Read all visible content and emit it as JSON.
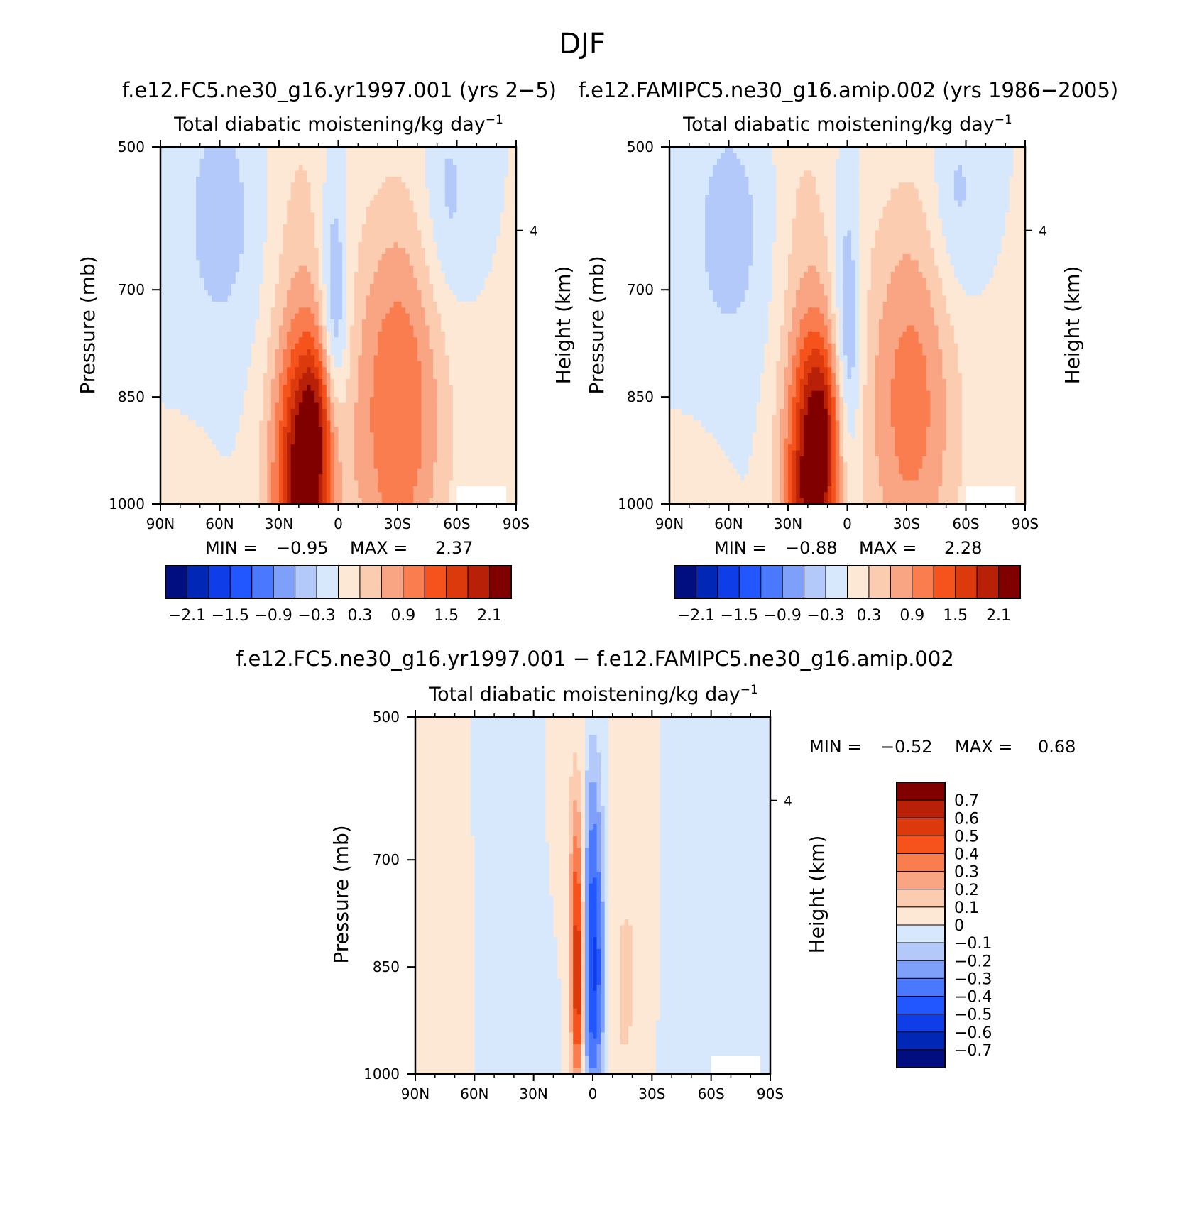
{
  "figure": {
    "title": "DJF",
    "diff_title": "f.e12.FC5.ne30_g16.yr1997.001 − f.e12.FAMIPC5.ne30_g16.amip.002"
  },
  "colors": {
    "abs_levels": [
      "#000e80",
      "#0027b5",
      "#0f3ee8",
      "#2257ff",
      "#4a79ff",
      "#7fa0fa",
      "#b3c9fa",
      "#d8e8fc",
      "#fde8d5",
      "#fcccb0",
      "#f9a482",
      "#fa7d50",
      "#f5521c",
      "#dc3a0c",
      "#b82008",
      "#800000"
    ],
    "diff_levels": [
      "#000e80",
      "#0027b5",
      "#0f3ee8",
      "#2257ff",
      "#4a79ff",
      "#7fa0fa",
      "#b3c9fa",
      "#d8e8fc",
      "#fde8d5",
      "#fcccb0",
      "#f9a482",
      "#fa7d50",
      "#f5521c",
      "#dc3a0c",
      "#b82008",
      "#800000"
    ]
  },
  "chart_data": [
    {
      "type": "heatmap",
      "panel_title": "f.e12.FC5.ne30_g16.yr1997.001 (yrs 2−5)",
      "subtitle": "Total diabatic moistening/kg day",
      "subtitle_sup": "−1",
      "xlabel": "",
      "ylabel": "Pressure (mb)",
      "ylabel_right": "Height (km)",
      "xticks": [
        "90N",
        "60N",
        "30N",
        "0",
        "30S",
        "60S",
        "90S"
      ],
      "yticks": [
        "500",
        "700",
        "850",
        "1000"
      ],
      "right_ticks": [
        "4"
      ],
      "x_range": [
        90,
        -90
      ],
      "y_range": [
        1000,
        500
      ],
      "min_label": "MIN =",
      "min_value": "−0.95",
      "max_label": "MAX =",
      "max_value": "2.37",
      "colorbar_labels": [
        "−2.1",
        "−1.5",
        "−0.9",
        "−0.3",
        "0.3",
        "0.9",
        "1.5",
        "2.1"
      ],
      "features": [
        {
          "lat": 18,
          "p": 990,
          "value": 2.37,
          "sx": 11,
          "sp": 170
        },
        {
          "lat": 10,
          "p": 880,
          "value": 0.8,
          "sx": 7,
          "sp": 80
        },
        {
          "lat": 20,
          "p": 560,
          "value": 0.25,
          "sx": 10,
          "sp": 150
        },
        {
          "lat": 2,
          "p": 760,
          "value": -0.95,
          "sx": 5,
          "sp": 140
        },
        {
          "lat": -30,
          "p": 870,
          "value": 1.2,
          "sx": 17,
          "sp": 200
        },
        {
          "lat": 60,
          "p": 600,
          "value": -0.45,
          "sx": 14,
          "sp": 130
        },
        {
          "lat": -55,
          "p": 580,
          "value": -0.45,
          "sx": 9,
          "sp": 110
        },
        {
          "lat": 80,
          "p": 990,
          "value": 0.3,
          "sx": 10,
          "sp": 50
        }
      ]
    },
    {
      "type": "heatmap",
      "panel_title": "f.e12.FAMIPC5.ne30_g16.amip.002 (yrs 1986−2005)",
      "subtitle": "Total diabatic moistening/kg day",
      "subtitle_sup": "−1",
      "xlabel": "",
      "ylabel": "Pressure (mb)",
      "ylabel_right": "Height (km)",
      "xticks": [
        "90N",
        "60N",
        "30N",
        "0",
        "30S",
        "60S",
        "90S"
      ],
      "yticks": [
        "500",
        "700",
        "850",
        "1000"
      ],
      "right_ticks": [
        "4"
      ],
      "x_range": [
        90,
        -90
      ],
      "y_range": [
        1000,
        500
      ],
      "min_label": "MIN =",
      "min_value": "−0.88",
      "max_label": "MAX =",
      "max_value": "2.28",
      "colorbar_labels": [
        "−2.1",
        "−1.5",
        "−0.9",
        "−0.3",
        "0.3",
        "0.9",
        "1.5",
        "2.1"
      ],
      "features": [
        {
          "lat": 18,
          "p": 985,
          "value": 2.28,
          "sx": 10,
          "sp": 170
        },
        {
          "lat": 12,
          "p": 880,
          "value": 0.7,
          "sx": 7,
          "sp": 80
        },
        {
          "lat": 22,
          "p": 560,
          "value": 0.25,
          "sx": 10,
          "sp": 150
        },
        {
          "lat": 0,
          "p": 790,
          "value": -0.88,
          "sx": 5,
          "sp": 150
        },
        {
          "lat": -32,
          "p": 860,
          "value": 1.05,
          "sx": 17,
          "sp": 200
        },
        {
          "lat": 60,
          "p": 620,
          "value": -0.45,
          "sx": 14,
          "sp": 130
        },
        {
          "lat": -55,
          "p": 580,
          "value": -0.45,
          "sx": 9,
          "sp": 110
        },
        {
          "lat": 80,
          "p": 990,
          "value": 0.3,
          "sx": 10,
          "sp": 50
        }
      ]
    },
    {
      "type": "heatmap",
      "panel_title": "",
      "subtitle": "Total diabatic moistening/kg day",
      "subtitle_sup": "−1",
      "xlabel": "",
      "ylabel": "Pressure (mb)",
      "ylabel_right": "Height (km)",
      "xticks": [
        "90N",
        "60N",
        "30N",
        "0",
        "30S",
        "60S",
        "90S"
      ],
      "yticks": [
        "500",
        "700",
        "850",
        "1000"
      ],
      "right_ticks": [
        "4"
      ],
      "x_range": [
        90,
        -90
      ],
      "y_range": [
        1000,
        500
      ],
      "min_label": "MIN =",
      "min_value": "−0.52",
      "max_label": "MAX =",
      "max_value": "0.68",
      "colorbar_labels": [
        "0.7",
        "0.6",
        "0.5",
        "0.4",
        "0.3",
        "0.2",
        "0.1",
        "0",
        "−0.1",
        "−0.2",
        "−0.3",
        "−0.4",
        "−0.5",
        "−0.6",
        "−0.7"
      ],
      "features": [
        {
          "lat": 0,
          "p": 870,
          "value": -0.52,
          "sx": 4.5,
          "sp": 130
        },
        {
          "lat": 0,
          "p": 650,
          "value": -0.2,
          "sx": 3.5,
          "sp": 110
        },
        {
          "lat": 7.5,
          "p": 880,
          "value": 0.68,
          "sx": 2.5,
          "sp": 110
        },
        {
          "lat": 8,
          "p": 700,
          "value": 0.25,
          "sx": 2.5,
          "sp": 90
        },
        {
          "lat": -15,
          "p": 900,
          "value": 0.1,
          "sx": 8,
          "sp": 150
        },
        {
          "lat": 35,
          "p": 700,
          "value": -0.08,
          "sx": 8,
          "sp": 300
        },
        {
          "lat": -45,
          "p": 700,
          "value": -0.08,
          "sx": 7,
          "sp": 300
        },
        {
          "lat": 80,
          "p": 800,
          "value": 0.07,
          "sx": 6,
          "sp": 250
        },
        {
          "lat": 15,
          "p": 550,
          "value": 0.05,
          "sx": 10,
          "sp": 150
        },
        {
          "lat": -22,
          "p": 620,
          "value": 0.05,
          "sx": 8,
          "sp": 200
        }
      ]
    }
  ]
}
